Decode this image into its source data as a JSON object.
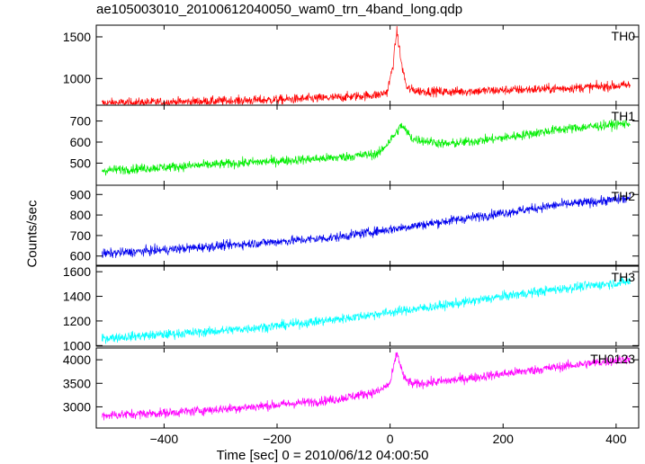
{
  "figure": {
    "title": "ae105003010_20100612040050_wam0_trn_4band_long.qdp",
    "ylabel": "Counts/sec",
    "xlabel": "Time [sec] 0 = 2010/06/12 04:00:50"
  },
  "chart_data": [
    {
      "type": "line",
      "name": "TH0",
      "color": "#ff0000",
      "xlim": [
        -520,
        440
      ],
      "ylim": [
        680,
        1640
      ],
      "yticks": [
        1000,
        1500
      ],
      "xticks": [
        -400,
        -200,
        0,
        200,
        400
      ],
      "x": [
        -510,
        -400,
        -200,
        -100,
        -20,
        -5,
        5,
        12,
        20,
        30,
        50,
        100,
        200,
        300,
        425
      ],
      "y": [
        705,
        715,
        745,
        770,
        805,
        840,
        1150,
        1580,
        1180,
        880,
        850,
        840,
        860,
        880,
        920
      ]
    },
    {
      "type": "line",
      "name": "TH1",
      "color": "#00ee00",
      "xlim": [
        -520,
        440
      ],
      "ylim": [
        395,
        775
      ],
      "yticks": [
        500,
        600,
        700
      ],
      "xticks": [
        -400,
        -200,
        0,
        200,
        400
      ],
      "x": [
        -510,
        -400,
        -300,
        -200,
        -100,
        -20,
        10,
        20,
        40,
        100,
        200,
        300,
        425
      ],
      "y": [
        465,
        480,
        495,
        510,
        525,
        545,
        640,
        680,
        615,
        590,
        620,
        660,
        690
      ]
    },
    {
      "type": "line",
      "name": "TH2",
      "color": "#0000ee",
      "xlim": [
        -520,
        440
      ],
      "ylim": [
        555,
        945
      ],
      "yticks": [
        600,
        700,
        800,
        900
      ],
      "xticks": [
        -400,
        -200,
        0,
        200,
        400
      ],
      "x": [
        -510,
        -400,
        -300,
        -200,
        -100,
        0,
        100,
        200,
        300,
        425
      ],
      "y": [
        610,
        630,
        650,
        670,
        690,
        730,
        770,
        810,
        850,
        880
      ]
    },
    {
      "type": "line",
      "name": "TH3",
      "color": "#00ffff",
      "xlim": [
        -520,
        440
      ],
      "ylim": [
        995,
        1645
      ],
      "yticks": [
        1000,
        1200,
        1400,
        1600
      ],
      "xticks": [
        -400,
        -200,
        0,
        200,
        400
      ],
      "x": [
        -510,
        -400,
        -300,
        -200,
        -100,
        0,
        100,
        200,
        300,
        425
      ],
      "y": [
        1060,
        1090,
        1120,
        1160,
        1210,
        1270,
        1330,
        1400,
        1460,
        1520
      ]
    },
    {
      "type": "line",
      "name": "TH0123",
      "color": "#ff00ff",
      "xlim": [
        -520,
        440
      ],
      "ylim": [
        2550,
        4250
      ],
      "yticks": [
        3000,
        3500,
        4000
      ],
      "xticks": [
        -400,
        -200,
        0,
        200,
        400
      ],
      "x": [
        -510,
        -400,
        -300,
        -200,
        -100,
        -20,
        0,
        12,
        25,
        40,
        100,
        200,
        300,
        425
      ],
      "y": [
        2820,
        2870,
        2950,
        3040,
        3150,
        3330,
        3500,
        4150,
        3600,
        3480,
        3550,
        3700,
        3850,
        4020
      ]
    }
  ]
}
